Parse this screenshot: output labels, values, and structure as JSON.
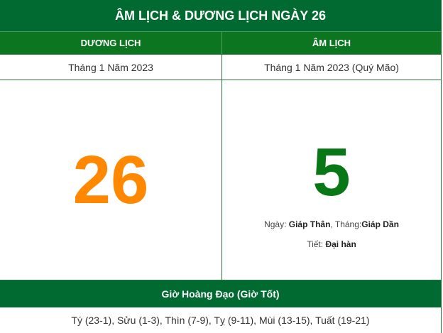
{
  "title": "ÂM LỊCH & DƯƠNG LỊCH NGÀY 26",
  "columns": {
    "solar": "DƯƠNG LỊCH",
    "lunar": "ÂM LỊCH"
  },
  "solar": {
    "month_year": "Tháng 1 Năm 2023",
    "day": "26",
    "day_color": "#ff8800"
  },
  "lunar": {
    "month_year": "Tháng 1 Năm 2023 (Quý Mão)",
    "day": "5",
    "day_color": "#087716",
    "day_label": "Ngày: ",
    "day_value": "Giáp Thân",
    "month_label": ", Tháng:",
    "month_value": "Giáp Dần",
    "term_label": "Tiết: ",
    "term_value": "Đại hàn"
  },
  "good_hours": {
    "heading": "Giờ Hoàng Đạo (Giờ Tốt)",
    "list": "Tý (23-1), Sửu (1-3), Thìn (7-9), Tỵ (9-11), Mùi (13-15), Tuất (19-21)"
  }
}
